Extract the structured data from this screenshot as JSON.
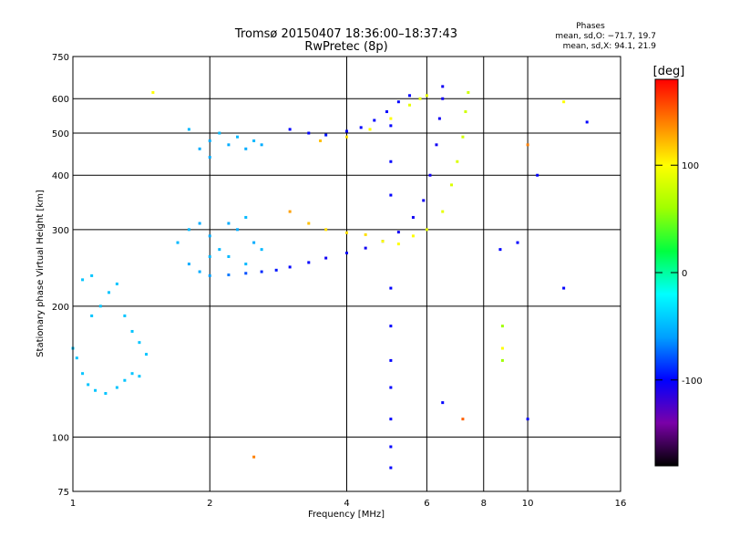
{
  "chart_data": {
    "type": "scatter",
    "title": "Tromsø 20150407 18:36:00–18:37:43",
    "subtitle": "RwPretec (8p)",
    "xlabel": "Frequency [MHz]",
    "ylabel": "Stationary phase Virtual Height [km]",
    "x_scale": "log",
    "y_scale": "log",
    "xlim": [
      1,
      16
    ],
    "ylim": [
      75,
      750
    ],
    "x_ticks": [
      1,
      2,
      4,
      6,
      8,
      10,
      16
    ],
    "x_tick_labels": [
      "1",
      "2",
      "4",
      "6",
      "8",
      "10",
      "16"
    ],
    "y_ticks": [
      75,
      100,
      200,
      300,
      400,
      500,
      600,
      750
    ],
    "y_tick_labels": [
      "75",
      "100",
      "200",
      "300",
      "400",
      "500",
      "600",
      "750"
    ],
    "grid": true,
    "phase_stats": {
      "heading": "Phases",
      "line_o": "mean, sd,O: −71.7, 19.7",
      "line_x": "mean, sd,X:  94.1, 21.9"
    },
    "colorbar": {
      "label": "[deg]",
      "range": [
        -180,
        180
      ],
      "ticks": [
        100,
        0,
        -100
      ],
      "tick_labels": [
        "100",
        "0",
        "-100"
      ],
      "colors": [
        "#000000",
        "#7a00a8",
        "#0000ff",
        "#00a0ff",
        "#00ffff",
        "#00ff40",
        "#a0ff00",
        "#ffff00",
        "#ff8000",
        "#ff0000"
      ]
    },
    "series": [
      {
        "description_key": "low_cyan_trace",
        "points": [
          [
            1.0,
            160,
            -45
          ],
          [
            1.02,
            152,
            -45
          ],
          [
            1.05,
            140,
            -45
          ],
          [
            1.08,
            132,
            -45
          ],
          [
            1.12,
            128,
            -45
          ],
          [
            1.18,
            126,
            -45
          ],
          [
            1.25,
            130,
            -45
          ],
          [
            1.3,
            135,
            -45
          ],
          [
            1.35,
            140,
            -45
          ],
          [
            1.4,
            138,
            -45
          ],
          [
            1.1,
            190,
            -45
          ],
          [
            1.15,
            200,
            -45
          ],
          [
            1.2,
            215,
            -45
          ],
          [
            1.25,
            225,
            -45
          ],
          [
            1.3,
            190,
            -45
          ],
          [
            1.35,
            175,
            -45
          ],
          [
            1.4,
            165,
            -45
          ],
          [
            1.45,
            155,
            -45
          ],
          [
            1.05,
            230,
            -45
          ],
          [
            1.1,
            235,
            -45
          ]
        ]
      },
      {
        "description_key": "o_trace_blue",
        "points": [
          [
            2.0,
            235,
            -60
          ],
          [
            2.2,
            236,
            -70
          ],
          [
            2.4,
            238,
            -80
          ],
          [
            2.6,
            240,
            -90
          ],
          [
            2.8,
            242,
            -95
          ],
          [
            3.0,
            246,
            -100
          ],
          [
            3.3,
            252,
            -100
          ],
          [
            3.6,
            258,
            -105
          ],
          [
            4.0,
            265,
            -105
          ],
          [
            4.4,
            272,
            -105
          ],
          [
            4.8,
            282,
            -105
          ],
          [
            5.2,
            296,
            -105
          ],
          [
            5.6,
            320,
            -105
          ],
          [
            5.9,
            350,
            -105
          ],
          [
            6.1,
            400,
            -105
          ],
          [
            6.3,
            470,
            -105
          ],
          [
            6.4,
            540,
            -105
          ],
          [
            6.5,
            600,
            -105
          ],
          [
            6.5,
            640,
            -105
          ]
        ]
      },
      {
        "description_key": "x_trace_yellow",
        "points": [
          [
            3.0,
            330,
            130
          ],
          [
            3.3,
            310,
            120
          ],
          [
            3.6,
            300,
            110
          ],
          [
            4.0,
            295,
            110
          ],
          [
            4.4,
            292,
            110
          ],
          [
            4.8,
            282,
            100
          ],
          [
            5.2,
            278,
            100
          ],
          [
            5.6,
            290,
            100
          ],
          [
            6.0,
            300,
            90
          ],
          [
            6.5,
            330,
            90
          ],
          [
            6.8,
            380,
            85
          ],
          [
            7.0,
            430,
            85
          ],
          [
            7.2,
            490,
            80
          ],
          [
            7.3,
            560,
            80
          ],
          [
            7.4,
            620,
            80
          ]
        ]
      },
      {
        "description_key": "upper_blue_f2",
        "points": [
          [
            3.0,
            510,
            -100
          ],
          [
            3.3,
            500,
            -100
          ],
          [
            3.6,
            495,
            -95
          ],
          [
            4.0,
            505,
            -100
          ],
          [
            4.3,
            515,
            -100
          ],
          [
            4.6,
            535,
            -100
          ],
          [
            4.9,
            560,
            -100
          ],
          [
            5.2,
            590,
            -100
          ],
          [
            5.5,
            610,
            -100
          ]
        ]
      },
      {
        "description_key": "upper_yellow_f2",
        "points": [
          [
            3.5,
            480,
            120
          ],
          [
            4.0,
            490,
            110
          ],
          [
            4.5,
            510,
            100
          ],
          [
            5.0,
            540,
            100
          ],
          [
            5.5,
            580,
            90
          ],
          [
            5.8,
            600,
            90
          ],
          [
            6.0,
            610,
            90
          ]
        ]
      },
      {
        "description_key": "cyan_cloud_f1",
        "points": [
          [
            1.7,
            280,
            -50
          ],
          [
            1.8,
            300,
            -50
          ],
          [
            1.9,
            310,
            -55
          ],
          [
            2.0,
            290,
            -55
          ],
          [
            2.1,
            270,
            -50
          ],
          [
            2.2,
            260,
            -50
          ],
          [
            2.3,
            300,
            -55
          ],
          [
            2.4,
            320,
            -50
          ],
          [
            2.5,
            280,
            -55
          ],
          [
            2.6,
            270,
            -50
          ],
          [
            1.8,
            250,
            -55
          ],
          [
            1.9,
            240,
            -55
          ],
          [
            2.0,
            260,
            -50
          ],
          [
            2.2,
            310,
            -55
          ],
          [
            2.4,
            250,
            -50
          ],
          [
            1.9,
            460,
            -55
          ],
          [
            2.0,
            480,
            -55
          ],
          [
            2.1,
            500,
            -50
          ],
          [
            2.2,
            470,
            -55
          ],
          [
            2.3,
            490,
            -50
          ],
          [
            2.4,
            460,
            -55
          ],
          [
            2.5,
            480,
            -50
          ],
          [
            2.6,
            470,
            -55
          ],
          [
            1.8,
            510,
            -50
          ],
          [
            2.0,
            440,
            -55
          ]
        ]
      },
      {
        "description_key": "vertical_spread_5mhz",
        "points": [
          [
            5.0,
            180,
            -100
          ],
          [
            5.0,
            150,
            -100
          ],
          [
            5.0,
            130,
            -100
          ],
          [
            5.0,
            110,
            -100
          ],
          [
            5.0,
            95,
            -100
          ],
          [
            5.0,
            85,
            -100
          ],
          [
            5.0,
            220,
            -100
          ],
          [
            5.0,
            360,
            -100
          ],
          [
            5.0,
            430,
            -100
          ],
          [
            5.0,
            520,
            -100
          ]
        ]
      },
      {
        "description_key": "scattered_points",
        "points": [
          [
            1.5,
            620,
            100
          ],
          [
            2.5,
            90,
            140
          ],
          [
            8.8,
            180,
            60
          ],
          [
            8.8,
            160,
            100
          ],
          [
            8.8,
            150,
            60
          ],
          [
            10.0,
            110,
            -100
          ],
          [
            10.0,
            470,
            140
          ],
          [
            12.0,
            590,
            100
          ],
          [
            12.0,
            220,
            -100
          ],
          [
            8.7,
            270,
            -100
          ],
          [
            9.5,
            280,
            -100
          ],
          [
            13.5,
            530,
            -100
          ],
          [
            6.5,
            120,
            -100
          ],
          [
            7.2,
            110,
            150
          ],
          [
            10.5,
            400,
            -100
          ]
        ]
      }
    ]
  }
}
